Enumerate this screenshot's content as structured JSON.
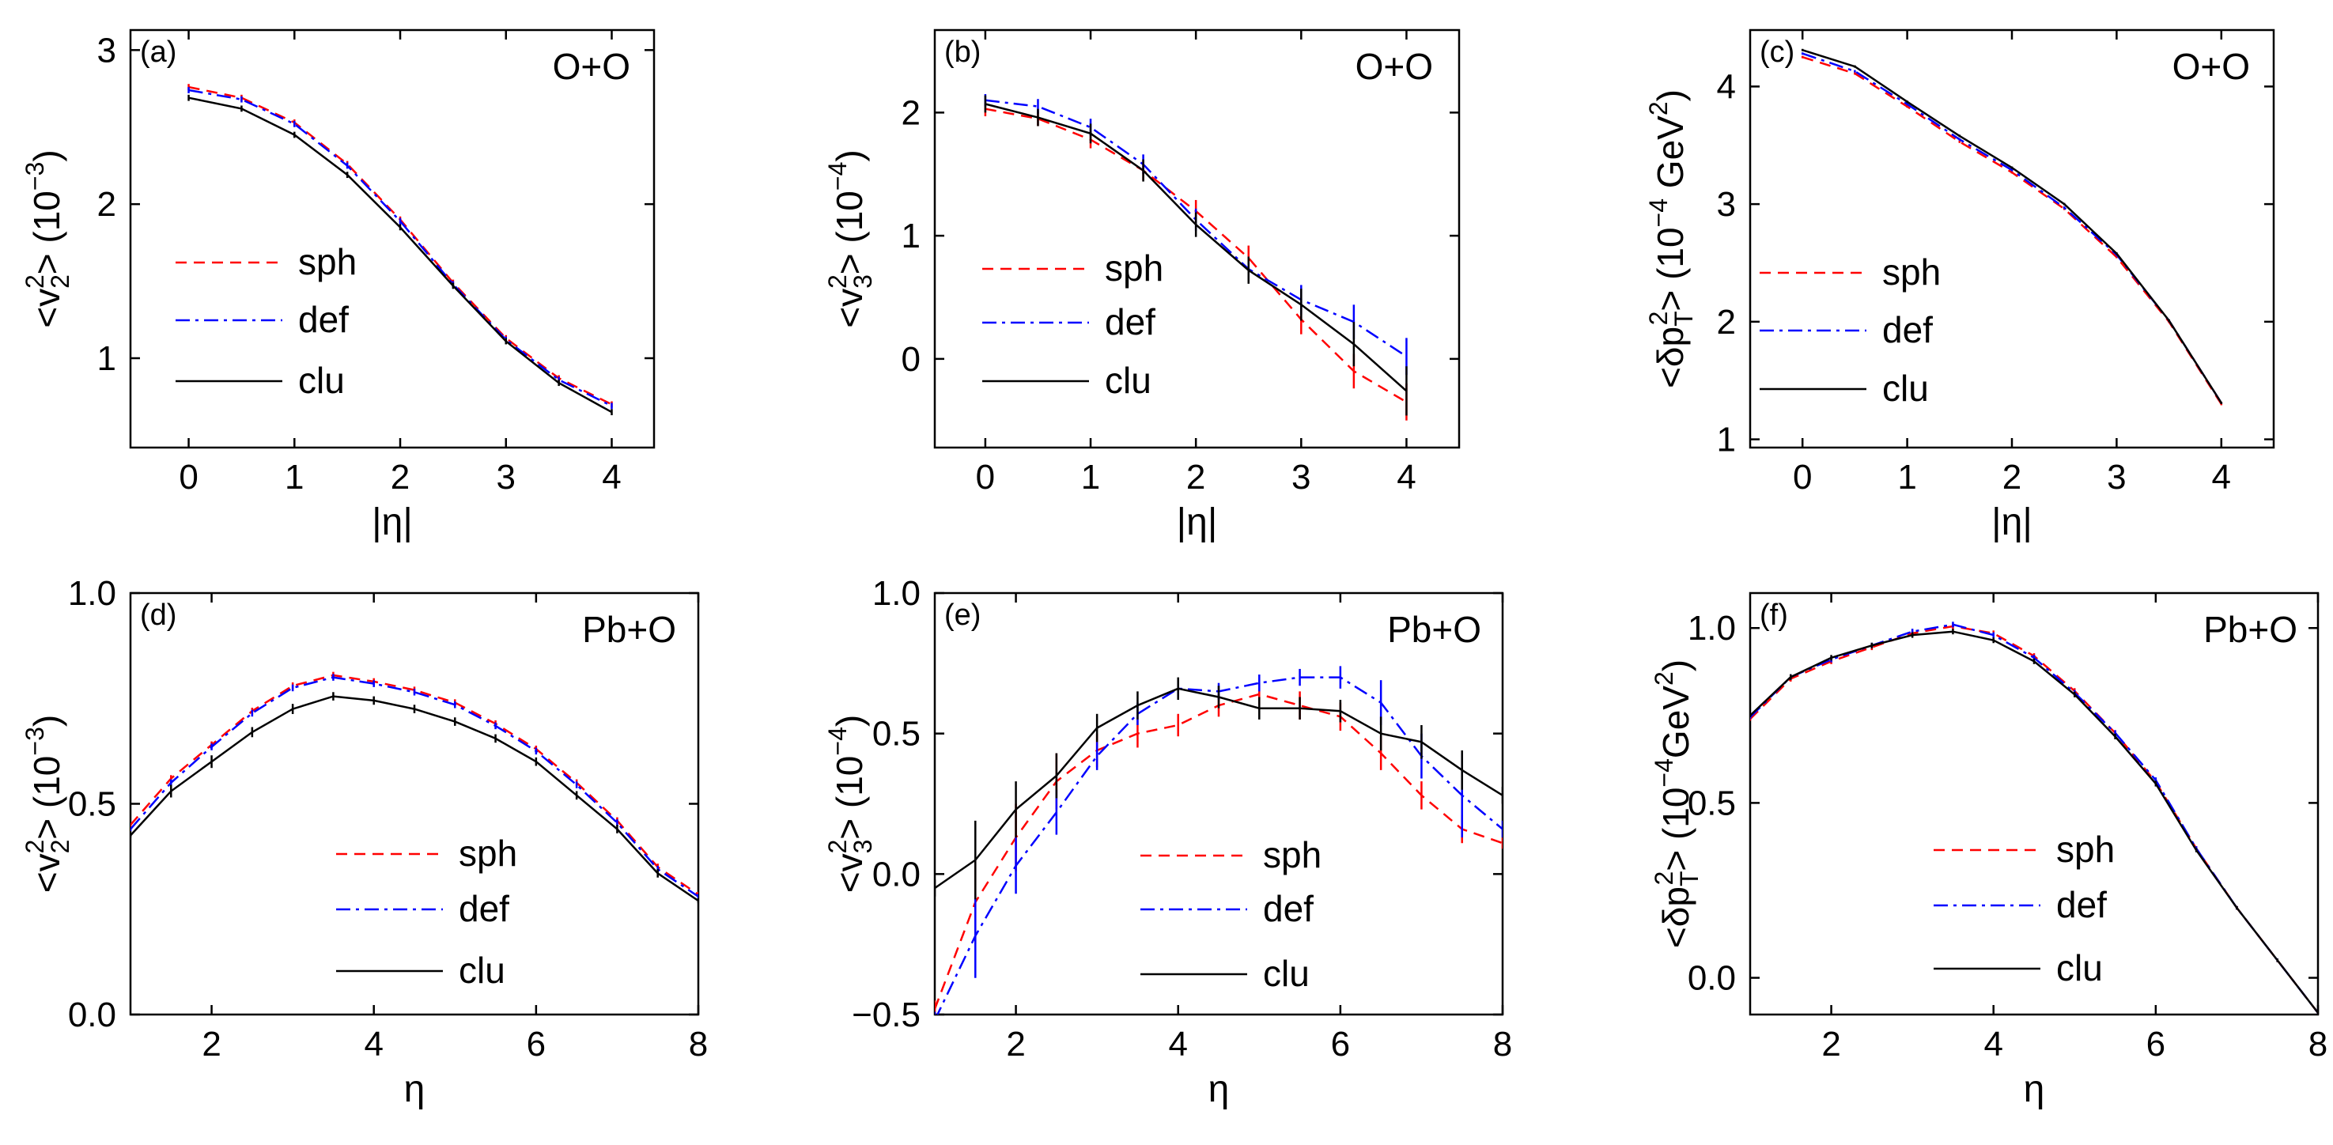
{
  "series_styles": [
    {
      "key": "sph",
      "color": "#ff0000",
      "dash": "14,9"
    },
    {
      "key": "def",
      "color": "#0000ff",
      "dash": "18,7,4,7"
    },
    {
      "key": "clu",
      "color": "#000000",
      "dash": ""
    }
  ],
  "chart_data": [
    {
      "type": "line",
      "panel_label": "(a)",
      "system": "O+O",
      "xlabel": "|η|",
      "ylabel_parts": [
        "<v",
        "2",
        "2",
        "> (10",
        "−3",
        ")"
      ],
      "xlim": [
        -0.55,
        4.4
      ],
      "ylim": [
        0.42,
        3.13
      ],
      "xticks": [
        0,
        1,
        2,
        3,
        4
      ],
      "yticks": [
        1,
        2,
        3
      ],
      "legend": [
        "sph",
        "def",
        "clu"
      ],
      "x": [
        0,
        0.5,
        1,
        1.5,
        2,
        2.5,
        3,
        3.5,
        4
      ],
      "series": [
        {
          "name": "sph",
          "values": [
            2.76,
            2.69,
            2.53,
            2.26,
            1.9,
            1.49,
            1.13,
            0.87,
            0.7
          ],
          "errors": [
            0.02,
            0.02,
            0.02,
            0.02,
            0.02,
            0.02,
            0.02,
            0.02,
            0.02
          ]
        },
        {
          "name": "def",
          "values": [
            2.74,
            2.68,
            2.52,
            2.25,
            1.89,
            1.48,
            1.12,
            0.86,
            0.69
          ],
          "errors": [
            0.02,
            0.02,
            0.02,
            0.02,
            0.02,
            0.02,
            0.02,
            0.02,
            0.02
          ]
        },
        {
          "name": "clu",
          "values": [
            2.69,
            2.62,
            2.45,
            2.19,
            1.85,
            1.47,
            1.11,
            0.84,
            0.65
          ],
          "errors": [
            0.02,
            0.02,
            0.02,
            0.02,
            0.02,
            0.02,
            0.02,
            0.02,
            0.02
          ]
        }
      ]
    },
    {
      "type": "line",
      "panel_label": "(b)",
      "system": "O+O",
      "xlabel": "|η|",
      "ylabel_parts": [
        "<v",
        "3",
        "2",
        "> (10",
        "−4",
        ")"
      ],
      "xlim": [
        -0.48,
        4.5
      ],
      "ylim": [
        -0.72,
        2.67
      ],
      "xticks": [
        0,
        1,
        2,
        3,
        4
      ],
      "yticks": [
        0,
        1,
        2
      ],
      "legend": [
        "sph",
        "def",
        "clu"
      ],
      "x": [
        0,
        0.5,
        1,
        1.5,
        2,
        2.5,
        3,
        3.5,
        4
      ],
      "series": [
        {
          "name": "sph",
          "values": [
            2.03,
            1.95,
            1.78,
            1.53,
            1.2,
            0.82,
            0.32,
            -0.1,
            -0.35
          ],
          "errors": [
            0.06,
            0.06,
            0.07,
            0.08,
            0.09,
            0.1,
            0.12,
            0.14,
            0.15
          ]
        },
        {
          "name": "def",
          "values": [
            2.1,
            2.05,
            1.88,
            1.58,
            1.13,
            0.73,
            0.48,
            0.3,
            0.02
          ],
          "errors": [
            0.05,
            0.06,
            0.07,
            0.08,
            0.09,
            0.1,
            0.12,
            0.14,
            0.15
          ]
        },
        {
          "name": "clu",
          "values": [
            2.07,
            1.96,
            1.83,
            1.53,
            1.09,
            0.72,
            0.44,
            0.12,
            -0.26
          ],
          "errors": [
            0.07,
            0.07,
            0.08,
            0.09,
            0.1,
            0.11,
            0.13,
            0.18,
            0.2
          ]
        }
      ]
    },
    {
      "type": "line",
      "panel_label": "(c)",
      "system": "O+O",
      "xlabel": "|η|",
      "ylabel_parts": [
        "<δp",
        "T",
        "2",
        "> (10",
        "−4",
        " GeV",
        "2",
        ")"
      ],
      "xlim": [
        -0.5,
        4.5
      ],
      "ylim": [
        0.93,
        4.48
      ],
      "xticks": [
        0,
        1,
        2,
        3,
        4
      ],
      "yticks": [
        1,
        2,
        3,
        4
      ],
      "legend": [
        "sph",
        "def",
        "clu"
      ],
      "x": [
        0,
        0.5,
        1,
        1.5,
        2,
        2.5,
        3,
        3.5,
        4
      ],
      "series": [
        {
          "name": "sph",
          "values": [
            4.25,
            4.11,
            3.83,
            3.53,
            3.27,
            2.96,
            2.55,
            2.0,
            1.3
          ],
          "errors": [
            0.01,
            0.01,
            0.01,
            0.01,
            0.01,
            0.01,
            0.01,
            0.01,
            0.01
          ]
        },
        {
          "name": "def",
          "values": [
            4.28,
            4.13,
            3.85,
            3.55,
            3.29,
            2.97,
            2.57,
            2.01,
            1.31
          ],
          "errors": [
            0.01,
            0.01,
            0.01,
            0.01,
            0.01,
            0.01,
            0.01,
            0.01,
            0.01
          ]
        },
        {
          "name": "clu",
          "values": [
            4.31,
            4.17,
            3.87,
            3.58,
            3.31,
            3.0,
            2.58,
            2.01,
            1.31
          ],
          "errors": [
            0.01,
            0.01,
            0.01,
            0.01,
            0.01,
            0.01,
            0.01,
            0.01,
            0.01
          ]
        }
      ]
    },
    {
      "type": "line",
      "panel_label": "(d)",
      "system": "Pb+O",
      "xlabel": "η",
      "ylabel_parts": [
        "<v",
        "2",
        "2",
        "> (10",
        "−3",
        ")"
      ],
      "xlim": [
        1,
        8
      ],
      "ylim": [
        0,
        1
      ],
      "xticks": [
        2,
        4,
        6,
        8
      ],
      "yticks": [
        0.0,
        0.5,
        1.0
      ],
      "legend": [
        "sph",
        "def",
        "clu"
      ],
      "x": [
        1,
        1.5,
        2,
        2.5,
        3,
        3.5,
        4,
        4.5,
        5,
        5.5,
        6,
        6.5,
        7,
        7.5,
        8
      ],
      "series": [
        {
          "name": "sph",
          "values": [
            0.45,
            0.56,
            0.64,
            0.72,
            0.78,
            0.805,
            0.79,
            0.77,
            0.74,
            0.69,
            0.63,
            0.55,
            0.46,
            0.35,
            0.285
          ],
          "errors": [
            0.005,
            0.008,
            0.008,
            0.008,
            0.008,
            0.008,
            0.008,
            0.008,
            0.008,
            0.008,
            0.008,
            0.008,
            0.008,
            0.008,
            0.006
          ]
        },
        {
          "name": "def",
          "values": [
            0.44,
            0.55,
            0.635,
            0.715,
            0.775,
            0.8,
            0.785,
            0.765,
            0.735,
            0.685,
            0.625,
            0.545,
            0.455,
            0.345,
            0.28
          ],
          "errors": [
            0.005,
            0.008,
            0.008,
            0.008,
            0.008,
            0.008,
            0.008,
            0.008,
            0.008,
            0.008,
            0.008,
            0.008,
            0.008,
            0.008,
            0.006
          ]
        },
        {
          "name": "clu",
          "values": [
            0.425,
            0.53,
            0.6,
            0.67,
            0.725,
            0.755,
            0.745,
            0.725,
            0.695,
            0.655,
            0.6,
            0.52,
            0.44,
            0.335,
            0.27
          ],
          "errors": [
            0.005,
            0.015,
            0.015,
            0.012,
            0.012,
            0.01,
            0.01,
            0.01,
            0.01,
            0.01,
            0.01,
            0.01,
            0.01,
            0.01,
            0.006
          ]
        }
      ]
    },
    {
      "type": "line",
      "panel_label": "(e)",
      "system": "Pb+O",
      "xlabel": "η",
      "ylabel_parts": [
        "<v",
        "3",
        "2",
        "> (10",
        "−4",
        ")"
      ],
      "xlim": [
        1,
        8
      ],
      "ylim": [
        -0.5,
        1.0
      ],
      "xticks": [
        2,
        4,
        6,
        8
      ],
      "yticks": [
        -0.5,
        0.0,
        0.5,
        1.0
      ],
      "legend": [
        "sph",
        "def",
        "clu"
      ],
      "x": [
        1,
        1.5,
        2,
        2.5,
        3,
        3.5,
        4,
        4.5,
        5,
        5.5,
        6,
        6.5,
        7,
        7.5,
        8
      ],
      "series": [
        {
          "name": "sph",
          "values": [
            -0.48,
            -0.1,
            0.13,
            0.33,
            0.44,
            0.5,
            0.53,
            0.6,
            0.64,
            0.6,
            0.56,
            0.43,
            0.28,
            0.16,
            0.11
          ],
          "errors": [
            0.03,
            0.15,
            0.12,
            0.1,
            0.06,
            0.05,
            0.04,
            0.04,
            0.04,
            0.05,
            0.05,
            0.06,
            0.05,
            0.05,
            0.02
          ]
        },
        {
          "name": "def",
          "values": [
            -0.52,
            -0.22,
            0.03,
            0.22,
            0.42,
            0.57,
            0.66,
            0.65,
            0.68,
            0.7,
            0.7,
            0.61,
            0.42,
            0.28,
            0.16
          ],
          "errors": [
            0.03,
            0.15,
            0.1,
            0.08,
            0.05,
            0.04,
            0.03,
            0.03,
            0.03,
            0.03,
            0.04,
            0.08,
            0.08,
            0.15,
            0.03
          ]
        },
        {
          "name": "clu",
          "values": [
            -0.05,
            0.05,
            0.23,
            0.35,
            0.52,
            0.6,
            0.66,
            0.63,
            0.59,
            0.59,
            0.58,
            0.5,
            0.47,
            0.37,
            0.28
          ],
          "errors": [
            0.03,
            0.14,
            0.1,
            0.08,
            0.05,
            0.05,
            0.04,
            0.04,
            0.04,
            0.04,
            0.04,
            0.06,
            0.06,
            0.07,
            0.03
          ]
        }
      ]
    },
    {
      "type": "line",
      "panel_label": "(f)",
      "system": "Pb+O",
      "xlabel": "η",
      "ylabel_parts": [
        "<δp",
        "T",
        "2",
        "> (10",
        "−4",
        "GeV",
        "2",
        ")"
      ],
      "xlim": [
        1,
        8
      ],
      "ylim": [
        -0.105,
        1.1
      ],
      "xticks": [
        2,
        4,
        6,
        8
      ],
      "yticks": [
        0.0,
        0.5,
        1.0
      ],
      "legend": [
        "sph",
        "def",
        "clu"
      ],
      "x": [
        1,
        1.5,
        2,
        2.5,
        3,
        3.5,
        4,
        4.5,
        5,
        5.5,
        6,
        6.5,
        7,
        7.5,
        8
      ],
      "series": [
        {
          "name": "sph",
          "values": [
            0.74,
            0.855,
            0.905,
            0.945,
            0.985,
            1.005,
            0.985,
            0.92,
            0.82,
            0.7,
            0.56,
            0.37,
            0.2,
            0.05,
            -0.1
          ],
          "errors": [
            0.005,
            0.008,
            0.008,
            0.008,
            0.008,
            0.008,
            0.008,
            0.008,
            0.008,
            0.008,
            0.008,
            0.006,
            0.005,
            0.005,
            0.005
          ]
        },
        {
          "name": "def",
          "values": [
            0.745,
            0.86,
            0.91,
            0.95,
            0.99,
            1.01,
            0.98,
            0.915,
            0.815,
            0.7,
            0.565,
            0.37,
            0.2,
            0.05,
            -0.1
          ],
          "errors": [
            0.005,
            0.008,
            0.008,
            0.008,
            0.008,
            0.008,
            0.008,
            0.008,
            0.008,
            0.008,
            0.008,
            0.006,
            0.005,
            0.005,
            0.005
          ]
        },
        {
          "name": "clu",
          "values": [
            0.75,
            0.86,
            0.915,
            0.95,
            0.98,
            0.99,
            0.965,
            0.905,
            0.81,
            0.69,
            0.555,
            0.365,
            0.2,
            0.05,
            -0.1
          ],
          "errors": [
            0.005,
            0.008,
            0.008,
            0.008,
            0.008,
            0.008,
            0.008,
            0.008,
            0.008,
            0.008,
            0.008,
            0.006,
            0.005,
            0.005,
            0.005
          ]
        }
      ]
    }
  ]
}
